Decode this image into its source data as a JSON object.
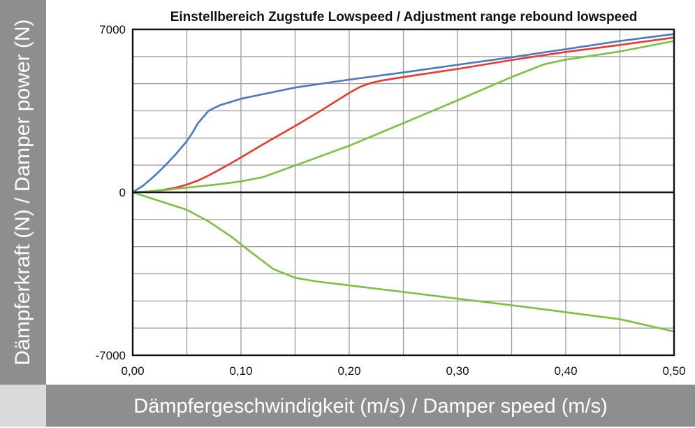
{
  "chart_data": {
    "type": "line",
    "title": "Einstellbereich Zugstufe Lowspeed / Adjustment range rebound lowspeed",
    "xlabel": "Dämpfergeschwindigkeit (m/s) / Damper speed (m/s)",
    "ylabel": "Dämpferkraft (N) / Damper power (N)",
    "xlim": [
      0,
      0.5
    ],
    "ylim": [
      -7000,
      7000
    ],
    "x_ticks": [
      0,
      0.1,
      0.2,
      0.3,
      0.4,
      0.5
    ],
    "x_tick_labels": [
      "0,00",
      "0,10",
      "0,20",
      "0,30",
      "0,40",
      "0,50"
    ],
    "x_minor_step": 0.05,
    "y_tick_labels": [
      {
        "value": 7000,
        "label": "7000"
      },
      {
        "value": 0,
        "label": "0"
      },
      {
        "value": -7000,
        "label": "-7000"
      }
    ],
    "y_grid": [
      -5833,
      -4667,
      -3500,
      -2333,
      -1167,
      1167,
      2333,
      3500,
      4667,
      5833
    ],
    "grid": true,
    "colors": {
      "blue": "#4a78c2",
      "red": "#e63a2e",
      "green": "#79c043",
      "grid": "#9a9a9a",
      "band": "#8c8e90",
      "corner": "#d9dadb"
    },
    "series": [
      {
        "color_key": "blue",
        "x": [
          0,
          0.01,
          0.02,
          0.03,
          0.04,
          0.05,
          0.055,
          0.06,
          0.07,
          0.08,
          0.1,
          0.15,
          0.2,
          0.25,
          0.3,
          0.35,
          0.4,
          0.45,
          0.5
        ],
        "y": [
          0,
          300,
          700,
          1150,
          1650,
          2200,
          2550,
          2950,
          3500,
          3730,
          4020,
          4500,
          4840,
          5150,
          5480,
          5800,
          6150,
          6500,
          6800
        ]
      },
      {
        "color_key": "red",
        "x": [
          0,
          0.01,
          0.02,
          0.03,
          0.04,
          0.05,
          0.06,
          0.07,
          0.08,
          0.09,
          0.1,
          0.12,
          0.15,
          0.17,
          0.2,
          0.21,
          0.22,
          0.23,
          0.25,
          0.3,
          0.35,
          0.4,
          0.45,
          0.5
        ],
        "y": [
          0,
          20,
          60,
          120,
          200,
          330,
          500,
          720,
          970,
          1230,
          1500,
          2050,
          2850,
          3400,
          4270,
          4530,
          4700,
          4800,
          4950,
          5300,
          5680,
          6030,
          6330,
          6650
        ]
      },
      {
        "color_key": "green",
        "x": [
          0,
          0.02,
          0.05,
          0.08,
          0.1,
          0.12,
          0.15,
          0.2,
          0.25,
          0.3,
          0.35,
          0.38,
          0.4,
          0.45,
          0.5
        ],
        "y": [
          0,
          50,
          200,
          350,
          470,
          650,
          1150,
          2000,
          2970,
          3950,
          4950,
          5500,
          5700,
          6050,
          6500
        ]
      },
      {
        "color_key": "green",
        "x": [
          0,
          0.02,
          0.05,
          0.07,
          0.09,
          0.11,
          0.13,
          0.15,
          0.17,
          0.2,
          0.25,
          0.3,
          0.35,
          0.4,
          0.45,
          0.5
        ],
        "y": [
          0,
          -300,
          -750,
          -1250,
          -1870,
          -2600,
          -3300,
          -3670,
          -3830,
          -4000,
          -4280,
          -4570,
          -4850,
          -5150,
          -5450,
          -5980
        ]
      }
    ]
  }
}
